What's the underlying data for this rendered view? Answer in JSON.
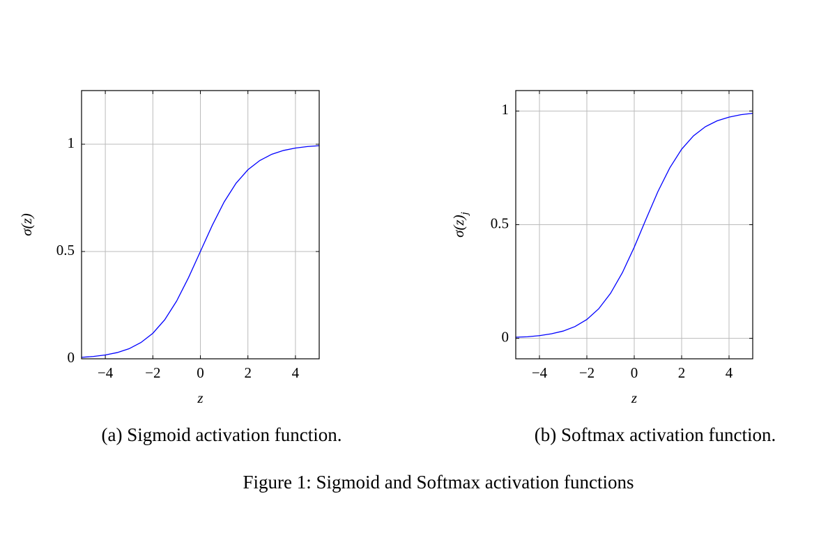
{
  "figure_caption": "Figure 1: Sigmoid and Softmax activation functions",
  "chart_data": [
    {
      "type": "line",
      "caption": "(a) Sigmoid activation function.",
      "x_label": "z",
      "y_label": "σ(z)",
      "x": [
        -5,
        -4.5,
        -4,
        -3.5,
        -3,
        -2.5,
        -2,
        -1.5,
        -1,
        -0.5,
        0,
        0.5,
        1,
        1.5,
        2,
        2.5,
        3,
        3.5,
        4,
        4.5,
        5
      ],
      "values": [
        0.007,
        0.011,
        0.018,
        0.029,
        0.047,
        0.076,
        0.119,
        0.182,
        0.269,
        0.378,
        0.5,
        0.622,
        0.731,
        0.818,
        0.881,
        0.924,
        0.953,
        0.971,
        0.982,
        0.989,
        0.993
      ],
      "color": "#0000ff",
      "xlim": [
        -5,
        5
      ],
      "ylim": [
        0,
        1.25
      ],
      "xticks": [
        {
          "value": -4,
          "label": "−4"
        },
        {
          "value": -2,
          "label": "−2"
        },
        0,
        2,
        4
      ],
      "yticks": [
        0,
        0.5,
        1
      ],
      "grid": true
    },
    {
      "type": "line",
      "caption": "(b) Softmax activation function.",
      "x_label": "z",
      "y_label": "σ(z)",
      "y_label_subscript": "j",
      "x": [
        -5,
        -4.5,
        -4,
        -3.5,
        -3,
        -2.5,
        -2,
        -1.5,
        -1,
        -0.5,
        0,
        0.5,
        1,
        1.5,
        2,
        2.5,
        3,
        3.5,
        4,
        4.5,
        5
      ],
      "values": [
        0.005,
        0.007,
        0.012,
        0.02,
        0.032,
        0.052,
        0.083,
        0.13,
        0.198,
        0.289,
        0.401,
        0.525,
        0.646,
        0.75,
        0.832,
        0.891,
        0.931,
        0.957,
        0.973,
        0.984,
        0.99
      ],
      "color": "#0000ff",
      "xlim": [
        -5,
        5
      ],
      "ylim": [
        -0.09,
        1.09
      ],
      "xticks": [
        {
          "value": -4,
          "label": "−4"
        },
        {
          "value": -2,
          "label": "−2"
        },
        0,
        2,
        4
      ],
      "yticks": [
        0,
        0.5,
        1
      ],
      "grid": true
    }
  ]
}
